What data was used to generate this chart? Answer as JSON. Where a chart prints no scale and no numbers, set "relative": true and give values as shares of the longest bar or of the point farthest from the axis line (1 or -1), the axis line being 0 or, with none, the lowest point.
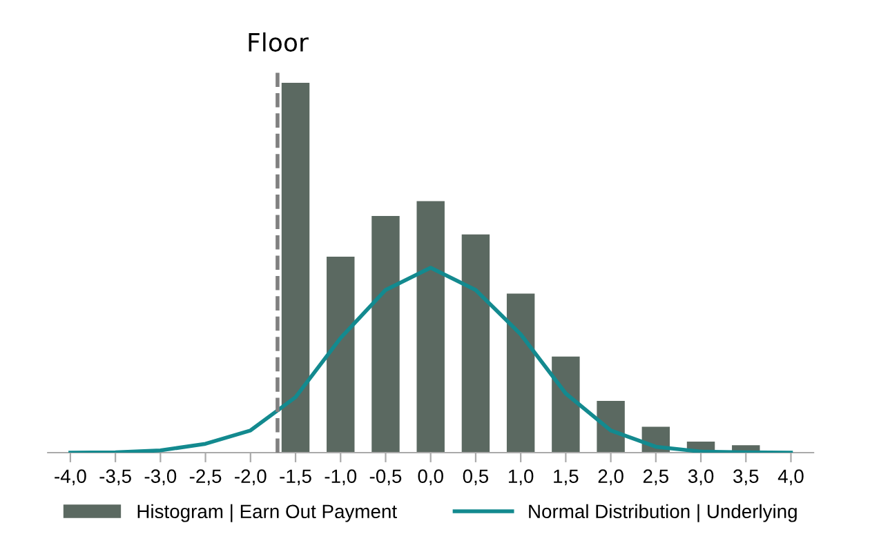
{
  "chart_data": {
    "type": "bar",
    "relative": true,
    "x": [
      -1.5,
      -1.0,
      -0.5,
      0.0,
      0.5,
      1.0,
      1.5,
      2.0,
      2.5,
      3.0,
      3.5
    ],
    "xlim": [
      -4.25,
      4.25
    ],
    "xticks": [
      {
        "value": -4,
        "label": "-4,0"
      },
      {
        "value": -3.5,
        "label": "-3,5"
      },
      {
        "value": -3,
        "label": "-3,0"
      },
      {
        "value": -2.5,
        "label": "-2,5"
      },
      {
        "value": -2,
        "label": "-2,0"
      },
      {
        "value": -1.5,
        "label": "-1,5"
      },
      {
        "value": -1,
        "label": "-1,0"
      },
      {
        "value": -0.5,
        "label": "-0,5"
      },
      {
        "value": 0,
        "label": "0,0"
      },
      {
        "value": 0.5,
        "label": "0,5"
      },
      {
        "value": 1,
        "label": "1,0"
      },
      {
        "value": 1.5,
        "label": "1,5"
      },
      {
        "value": 2,
        "label": "2,0"
      },
      {
        "value": 2.5,
        "label": "2,5"
      },
      {
        "value": 3,
        "label": "3,0"
      },
      {
        "value": 3.5,
        "label": "3,5"
      },
      {
        "value": 4,
        "label": "4,0"
      }
    ],
    "series": [
      {
        "name": "Histogram | Earn Out Payment",
        "color": "#5b6961",
        "values": [
          1.0,
          0.53,
          0.64,
          0.68,
          0.59,
          0.43,
          0.26,
          0.14,
          0.07,
          0.03,
          0.02
        ]
      },
      {
        "name": "Normal Distribution | Underlying",
        "type": "line",
        "color": "#138a8f",
        "x": [
          -4.0,
          -3.5,
          -3.0,
          -2.5,
          -2.0,
          -1.5,
          -1.0,
          -0.5,
          0.0,
          0.5,
          1.0,
          1.5,
          2.0,
          2.5,
          3.0,
          3.5,
          4.0
        ],
        "values": [
          0.0,
          0.001,
          0.006,
          0.024,
          0.06,
          0.15,
          0.31,
          0.44,
          0.5,
          0.44,
          0.32,
          0.16,
          0.06,
          0.016,
          0.003,
          0.001,
          0.0
        ]
      }
    ],
    "ref_lines": [
      {
        "axis": "x",
        "value": -1.7,
        "label": "Floor",
        "color": "#808080",
        "line_style": "dashed"
      }
    ],
    "legend": "bottom",
    "grid": false,
    "marker": "none",
    "line_style": "solid"
  }
}
